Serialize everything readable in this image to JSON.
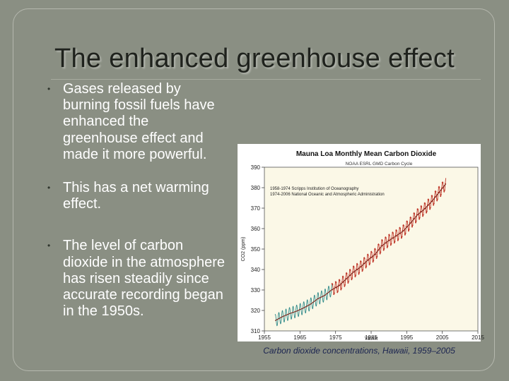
{
  "slide": {
    "title": "The enhanced greenhouse effect",
    "bullets": [
      "Gases released by burning fossil fuels have enhanced the greenhouse effect and made it more powerful.",
      "This has a net warming effect.",
      "The level of carbon dioxide in the atmosphere has risen steadily since accurate recording began in the 1950s."
    ],
    "bullet_glyph": "•",
    "caption": "Carbon dioxide concentrations, Hawaii, 1959–2005",
    "colors": {
      "background": "#8a8f83",
      "title": "#1f221d",
      "scripps": "#2f8a89",
      "noaa": "#c0392b",
      "trend": "#7a1f16"
    }
  },
  "chart_data": {
    "type": "line",
    "title": "Mauna Loa Monthly Mean Carbon Dioxide",
    "subtitle": "NOAA ESRL GMD Carbon Cycle",
    "xlabel": "YEAR",
    "ylabel": "CO2 (ppm)",
    "xlim": [
      1955,
      2015
    ],
    "ylim": [
      310,
      390
    ],
    "xticks": [
      1955,
      1965,
      1975,
      1985,
      1995,
      2005,
      2015
    ],
    "yticks": [
      310,
      320,
      330,
      340,
      350,
      360,
      370,
      380,
      390
    ],
    "legend": [
      "1958-1974 Scripps Institution of Oceanography",
      "1974-2006 National Oceanic and Atmospheric Administration"
    ],
    "series": [
      {
        "name": "1958-1974 Scripps Institution of Oceanography",
        "x": [
          1958,
          1960,
          1962,
          1964,
          1966,
          1968,
          1970,
          1972,
          1974
        ],
        "y": [
          315,
          316.9,
          318.4,
          319.6,
          321.2,
          323.1,
          325.7,
          327.4,
          330.2
        ]
      },
      {
        "name": "1974-2006 National Oceanic and Atmospheric Administration",
        "x": [
          1974,
          1976,
          1978,
          1980,
          1982,
          1984,
          1986,
          1988,
          1990,
          1992,
          1994,
          1996,
          1998,
          2000,
          2002,
          2004,
          2006
        ],
        "y": [
          330.2,
          332.1,
          335.4,
          338.7,
          341.2,
          344.5,
          347.2,
          351.6,
          354.2,
          356.4,
          358.8,
          362.6,
          366.7,
          369.6,
          373.2,
          377.5,
          381.9
        ]
      }
    ],
    "seasonal_amplitude_ppm": 3
  }
}
